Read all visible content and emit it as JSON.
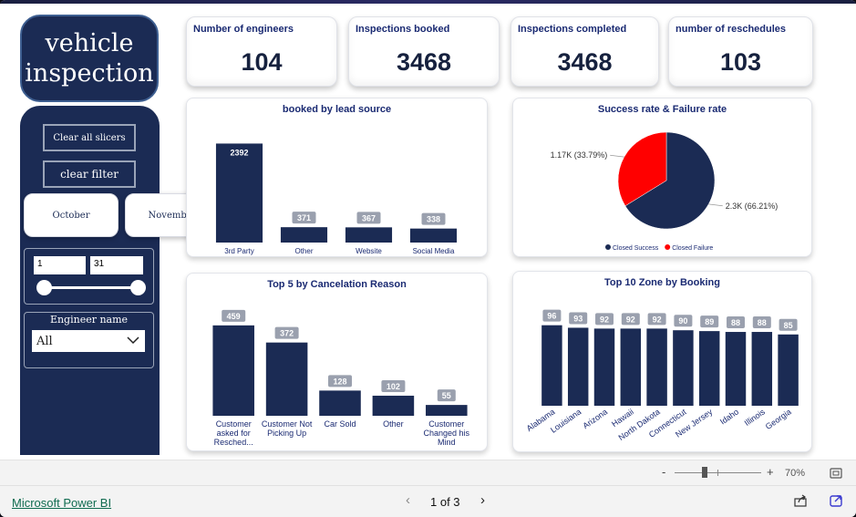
{
  "sidebar": {
    "title": "vehicle\ninspection",
    "clear_slicers": "Clear all slicers",
    "clear_filter": "clear filter",
    "months": [
      "October",
      "November"
    ],
    "day_range": {
      "start": "1",
      "end": "31"
    },
    "engineer": {
      "label": "Engineer name",
      "value": "All"
    }
  },
  "kpis": [
    {
      "title": "Number of engineers",
      "value": "104"
    },
    {
      "title": "Inspections booked",
      "value": "3468"
    },
    {
      "title": "Inspections completed",
      "value": "3468"
    },
    {
      "title": "number of reschedules",
      "value": "103"
    }
  ],
  "chart_data": [
    {
      "type": "bar",
      "title": "booked by lead source",
      "categories": [
        "3rd Party",
        "Other",
        "Website",
        "Social Media"
      ],
      "values": [
        2392,
        371,
        367,
        338
      ],
      "ylim": [
        0,
        2600
      ],
      "color": "#1b2b54"
    },
    {
      "type": "pie",
      "title": "Success rate & Failure rate",
      "slices": [
        {
          "name": "Closed Success",
          "value": 66.21,
          "label": "2.3K (66.21%)",
          "color": "#1b2b54"
        },
        {
          "name": "Closed Failure",
          "value": 33.79,
          "label": "1.17K (33.79%)",
          "color": "#ff0000"
        }
      ],
      "legend": "bottom"
    },
    {
      "type": "bar",
      "title": "Top 5 by Cancelation Reason",
      "categories": [
        "Customer asked for Resched...",
        "Customer Not Picking Up",
        "Car Sold",
        "Other",
        "Customer Changed his Mind"
      ],
      "values": [
        459,
        372,
        128,
        102,
        55
      ],
      "ylim": [
        0,
        500
      ],
      "color": "#1b2b54"
    },
    {
      "type": "bar",
      "title": "Top 10 Zone by Booking",
      "categories": [
        "Alabama",
        "Louisiana",
        "Arizona",
        "Hawaii",
        "North Dakota",
        "Connecticut",
        "New Jersey",
        "Idaho",
        "Illinois",
        "Georgia"
      ],
      "values": [
        96,
        93,
        92,
        92,
        92,
        90,
        89,
        88,
        88,
        85
      ],
      "ylim": [
        0,
        100
      ],
      "color": "#1b2b54"
    }
  ],
  "footer": {
    "brand": "Microsoft Power BI",
    "page": "1 of 3",
    "zoom": "70%",
    "zoom_level": 0.35
  }
}
